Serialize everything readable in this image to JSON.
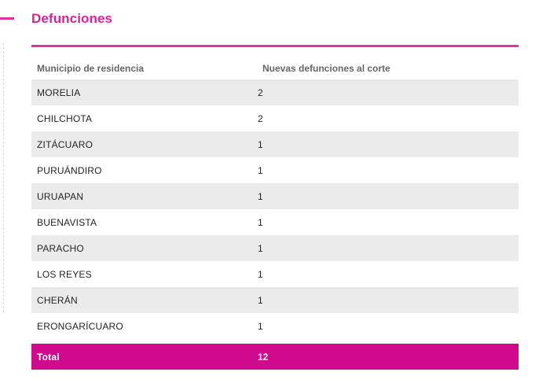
{
  "panel": {
    "title": "Defunciones",
    "title_color": "#d5239c",
    "rule_color": "#e6309f"
  },
  "decorations": {
    "top_left_dash_color": "#e6309f",
    "dotted_line_color": "#dcdcdc"
  },
  "table": {
    "columns": [
      "Municipio de residencia",
      "Nuevas defunciones al corte"
    ],
    "rows": [
      {
        "municipio": "MORELIA",
        "value": "2"
      },
      {
        "municipio": "CHILCHOTA",
        "value": "2"
      },
      {
        "municipio": "ZITÁCUARO",
        "value": "1"
      },
      {
        "municipio": "PURUÁNDIRO",
        "value": "1"
      },
      {
        "municipio": "URUAPAN",
        "value": "1"
      },
      {
        "municipio": "BUENAVISTA",
        "value": "1"
      },
      {
        "municipio": "PARACHO",
        "value": "1"
      },
      {
        "municipio": "LOS REYES",
        "value": "1"
      },
      {
        "municipio": "CHERÁN",
        "value": "1"
      },
      {
        "municipio": "ERONGARÍCUARO",
        "value": "1"
      }
    ],
    "total": {
      "label": "Total",
      "value": "12"
    },
    "colors": {
      "alt_row_bg": "#ebebeb",
      "header_text": "#666666",
      "cell_text": "#252423",
      "total_bg": "#d00a8c",
      "total_text": "#ffffff"
    }
  },
  "chart_data": {
    "type": "table",
    "title": "Defunciones",
    "columns": [
      "Municipio de residencia",
      "Nuevas defunciones al corte"
    ],
    "rows": [
      [
        "MORELIA",
        2
      ],
      [
        "CHILCHOTA",
        2
      ],
      [
        "ZITÁCUARO",
        1
      ],
      [
        "PURUÁNDIRO",
        1
      ],
      [
        "URUAPAN",
        1
      ],
      [
        "BUENAVISTA",
        1
      ],
      [
        "PARACHO",
        1
      ],
      [
        "LOS REYES",
        1
      ],
      [
        "CHERÁN",
        1
      ],
      [
        "ERONGARÍCUARO",
        1
      ]
    ],
    "total": [
      "Total",
      12
    ],
    "layout_hints": {
      "striped_rows": true,
      "total_row_highlight": "#d00a8c",
      "accent_color": "#e6309f"
    }
  }
}
